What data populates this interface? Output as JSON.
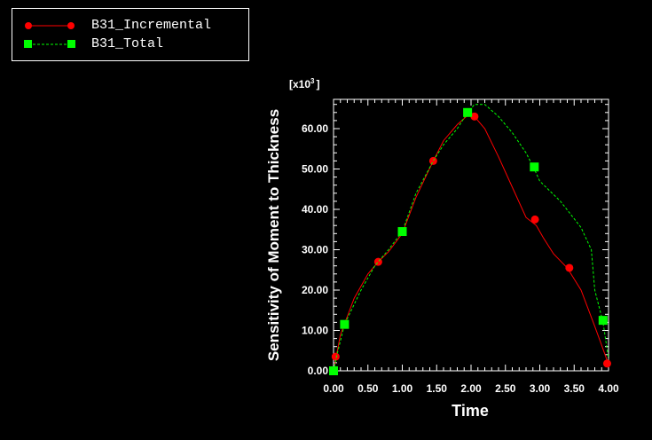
{
  "chart_data": {
    "type": "line",
    "xlabel": "Time",
    "ylabel": "Sensitivity of Moment to Thickness",
    "y_multiplier_label": "[x10",
    "y_multiplier_exp": "3",
    "y_multiplier_close": "]",
    "xlim": [
      0.0,
      4.0
    ],
    "ylim": [
      0.0,
      70.0
    ],
    "x_ticks": [
      "0.00",
      "0.50",
      "1.00",
      "1.50",
      "2.00",
      "2.50",
      "3.00",
      "3.50",
      "4.00"
    ],
    "y_ticks": [
      "0.00",
      "10.00",
      "20.00",
      "30.00",
      "40.00",
      "50.00",
      "60.00"
    ],
    "legend_position": "top-left",
    "series": [
      {
        "name": "B31_Incremental",
        "color": "#ff0000",
        "marker": "circle",
        "line": "solid",
        "x": [
          0.0,
          0.1,
          0.3,
          0.5,
          0.65,
          0.8,
          1.0,
          1.2,
          1.45,
          1.6,
          1.8,
          2.0,
          2.05,
          2.2,
          2.4,
          2.6,
          2.8,
          2.95,
          3.05,
          3.2,
          3.4,
          3.6,
          3.8,
          3.95,
          4.0
        ],
        "y": [
          0.0,
          9.0,
          18.0,
          24.0,
          27.0,
          29.5,
          34.0,
          43.0,
          52.0,
          57.0,
          61.0,
          64.0,
          63.0,
          60.0,
          53.0,
          45.5,
          38.0,
          36.0,
          33.0,
          29.0,
          25.5,
          20.0,
          11.0,
          4.0,
          1.5
        ],
        "markers_x": [
          0.03,
          0.65,
          1.45,
          2.05,
          2.93,
          3.43,
          3.98
        ],
        "markers_y": [
          3.5,
          27.0,
          52.0,
          63.0,
          37.5,
          25.5,
          1.8
        ]
      },
      {
        "name": "B31_Total",
        "color": "#00ff00",
        "marker": "square",
        "line": "dashed",
        "x": [
          0.0,
          0.05,
          0.16,
          0.4,
          0.6,
          0.8,
          1.0,
          1.2,
          1.45,
          1.6,
          1.8,
          1.95,
          2.05,
          2.2,
          2.4,
          2.6,
          2.8,
          2.92,
          3.0,
          3.3,
          3.6,
          3.75,
          3.8,
          3.92,
          4.0
        ],
        "y": [
          0.0,
          4.0,
          11.5,
          20.0,
          26.0,
          30.0,
          34.5,
          44.0,
          52.0,
          56.0,
          60.0,
          64.0,
          66.0,
          66.0,
          63.0,
          59.0,
          54.0,
          50.0,
          47.0,
          42.0,
          35.5,
          30.0,
          20.0,
          12.0,
          3.0
        ],
        "markers_x": [
          0.0,
          0.16,
          1.0,
          1.95,
          2.92,
          3.92
        ],
        "markers_y": [
          0.0,
          11.5,
          34.5,
          64.0,
          50.5,
          12.5
        ]
      }
    ]
  },
  "legend": {
    "items": [
      {
        "label": "B31_Incremental",
        "color": "#ff0000"
      },
      {
        "label": "B31_Total",
        "color": "#00ff00"
      }
    ]
  }
}
